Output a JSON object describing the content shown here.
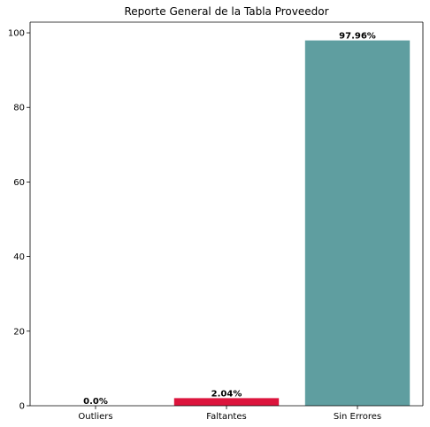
{
  "chart_data": {
    "type": "bar",
    "title": "Reporte General de la Tabla Proveedor",
    "xlabel": "",
    "ylabel": "",
    "categories": [
      "Outliers",
      "Faltantes",
      "Sin Errores"
    ],
    "values": [
      0.0,
      2.04,
      97.96
    ],
    "data_labels": [
      "0.0%",
      "2.04%",
      "97.96%"
    ],
    "colors": [
      "#1f77b4",
      "#dc143c",
      "#5f9ea0"
    ],
    "ylim": [
      0,
      102.86
    ],
    "yticks": [
      0,
      20,
      40,
      60,
      80,
      100
    ],
    "grid": false,
    "legend": "none"
  }
}
